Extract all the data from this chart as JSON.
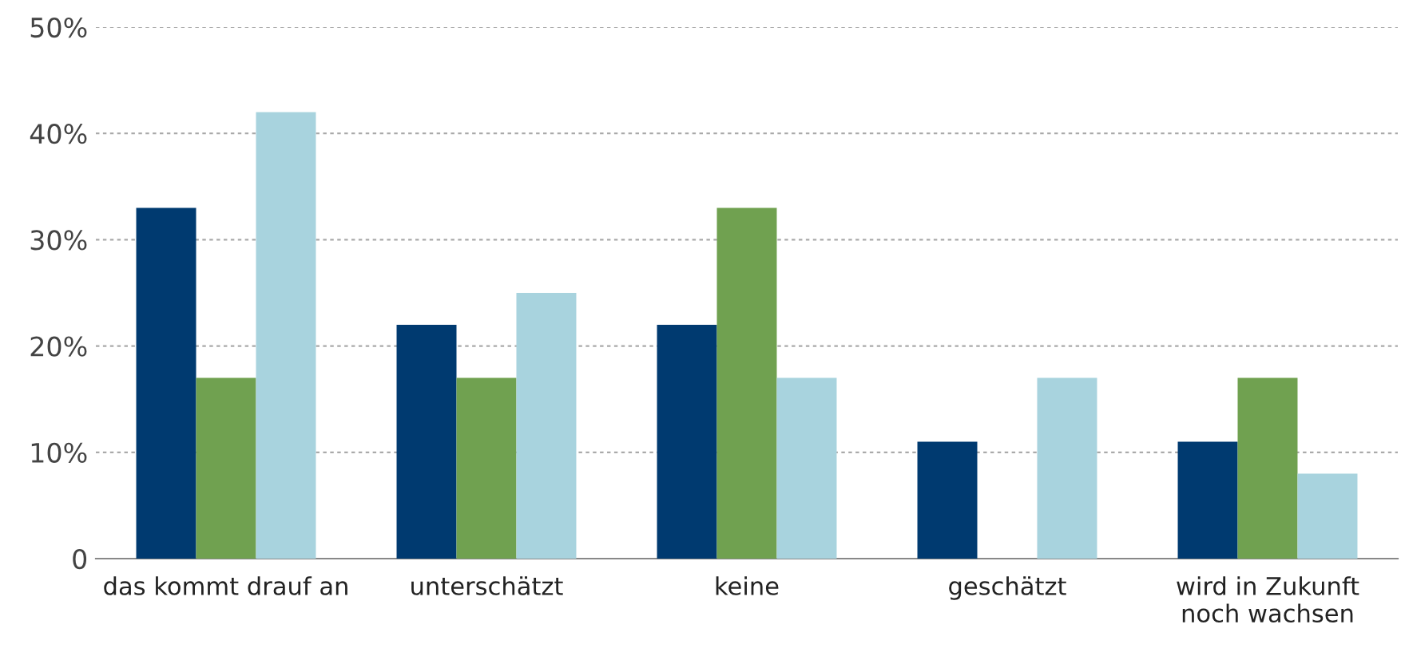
{
  "chart_data": {
    "type": "bar",
    "categories": [
      "das kommt drauf an",
      "unterschätzt",
      "keine",
      "geschätzt",
      "wird in Zukunft\nnoch wachsen"
    ],
    "series": [
      {
        "color": "#003a70",
        "values": [
          33,
          22,
          22,
          11,
          11
        ]
      },
      {
        "color": "#70a150",
        "values": [
          17,
          17,
          33,
          null,
          17
        ]
      },
      {
        "color": "#a8d3de",
        "values": [
          42,
          25,
          17,
          17,
          8
        ]
      }
    ],
    "ylim": [
      0,
      50
    ],
    "yticks": [
      {
        "value": 0,
        "label": "0"
      },
      {
        "value": 10,
        "label": "10%"
      },
      {
        "value": 20,
        "label": "20%"
      },
      {
        "value": 30,
        "label": "30%"
      },
      {
        "value": 40,
        "label": "40%"
      },
      {
        "value": 50,
        "label": "50%"
      }
    ],
    "grid": "y"
  }
}
